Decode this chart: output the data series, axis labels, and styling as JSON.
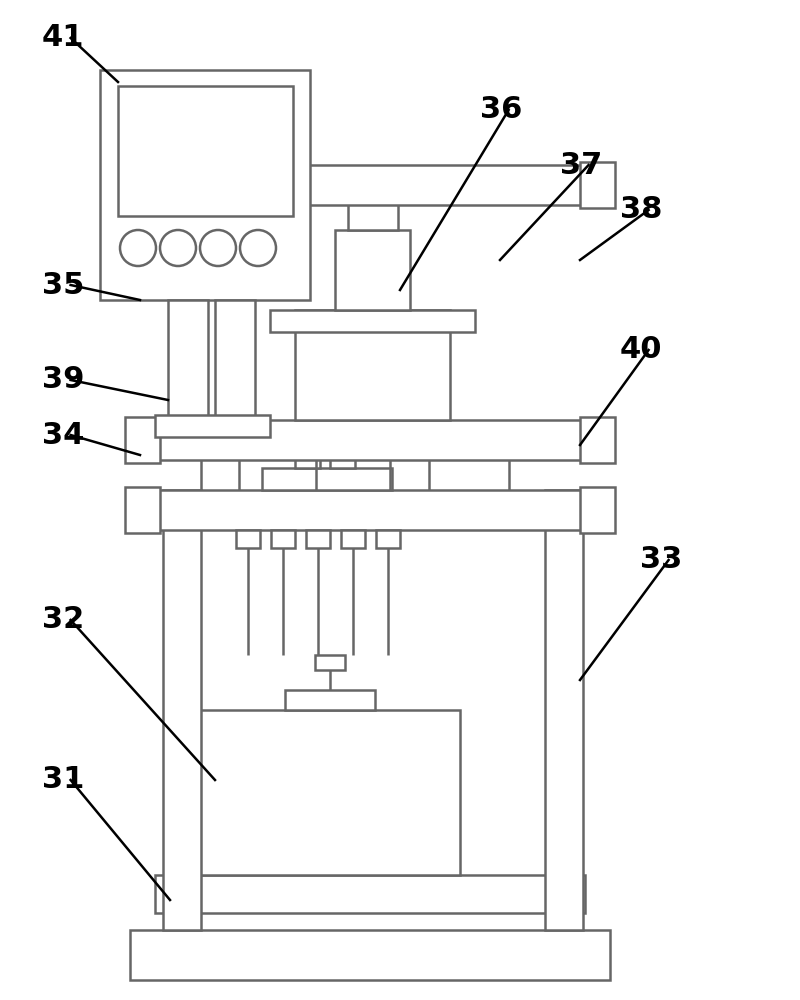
{
  "bg_color": "#ffffff",
  "line_color": "#666666",
  "line_width": 1.8,
  "label_fontsize": 22
}
